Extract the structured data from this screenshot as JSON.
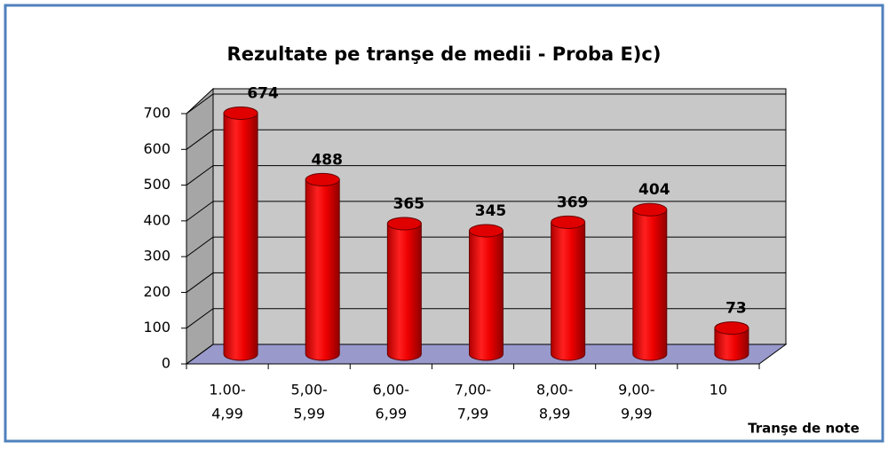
{
  "chart_data": {
    "type": "bar3d",
    "title": "Rezultate pe tranşe de medii  - Proba E)c)",
    "x_label": "Tranşe de note",
    "categories": [
      [
        "1.00-",
        "4,99"
      ],
      [
        "5,00-",
        "5,99"
      ],
      [
        "6,00-",
        "6,99"
      ],
      [
        "7,00-",
        "7,99"
      ],
      [
        "8,00-",
        "8,99"
      ],
      [
        "9,00-",
        "9,99"
      ],
      [
        "10"
      ]
    ],
    "values": [
      674,
      488,
      365,
      345,
      369,
      404,
      73
    ],
    "color": "#ff0000",
    "ylim": [
      0,
      700
    ],
    "yticks": [
      0,
      100,
      200,
      300,
      400,
      500,
      600,
      700
    ],
    "grid": true
  }
}
